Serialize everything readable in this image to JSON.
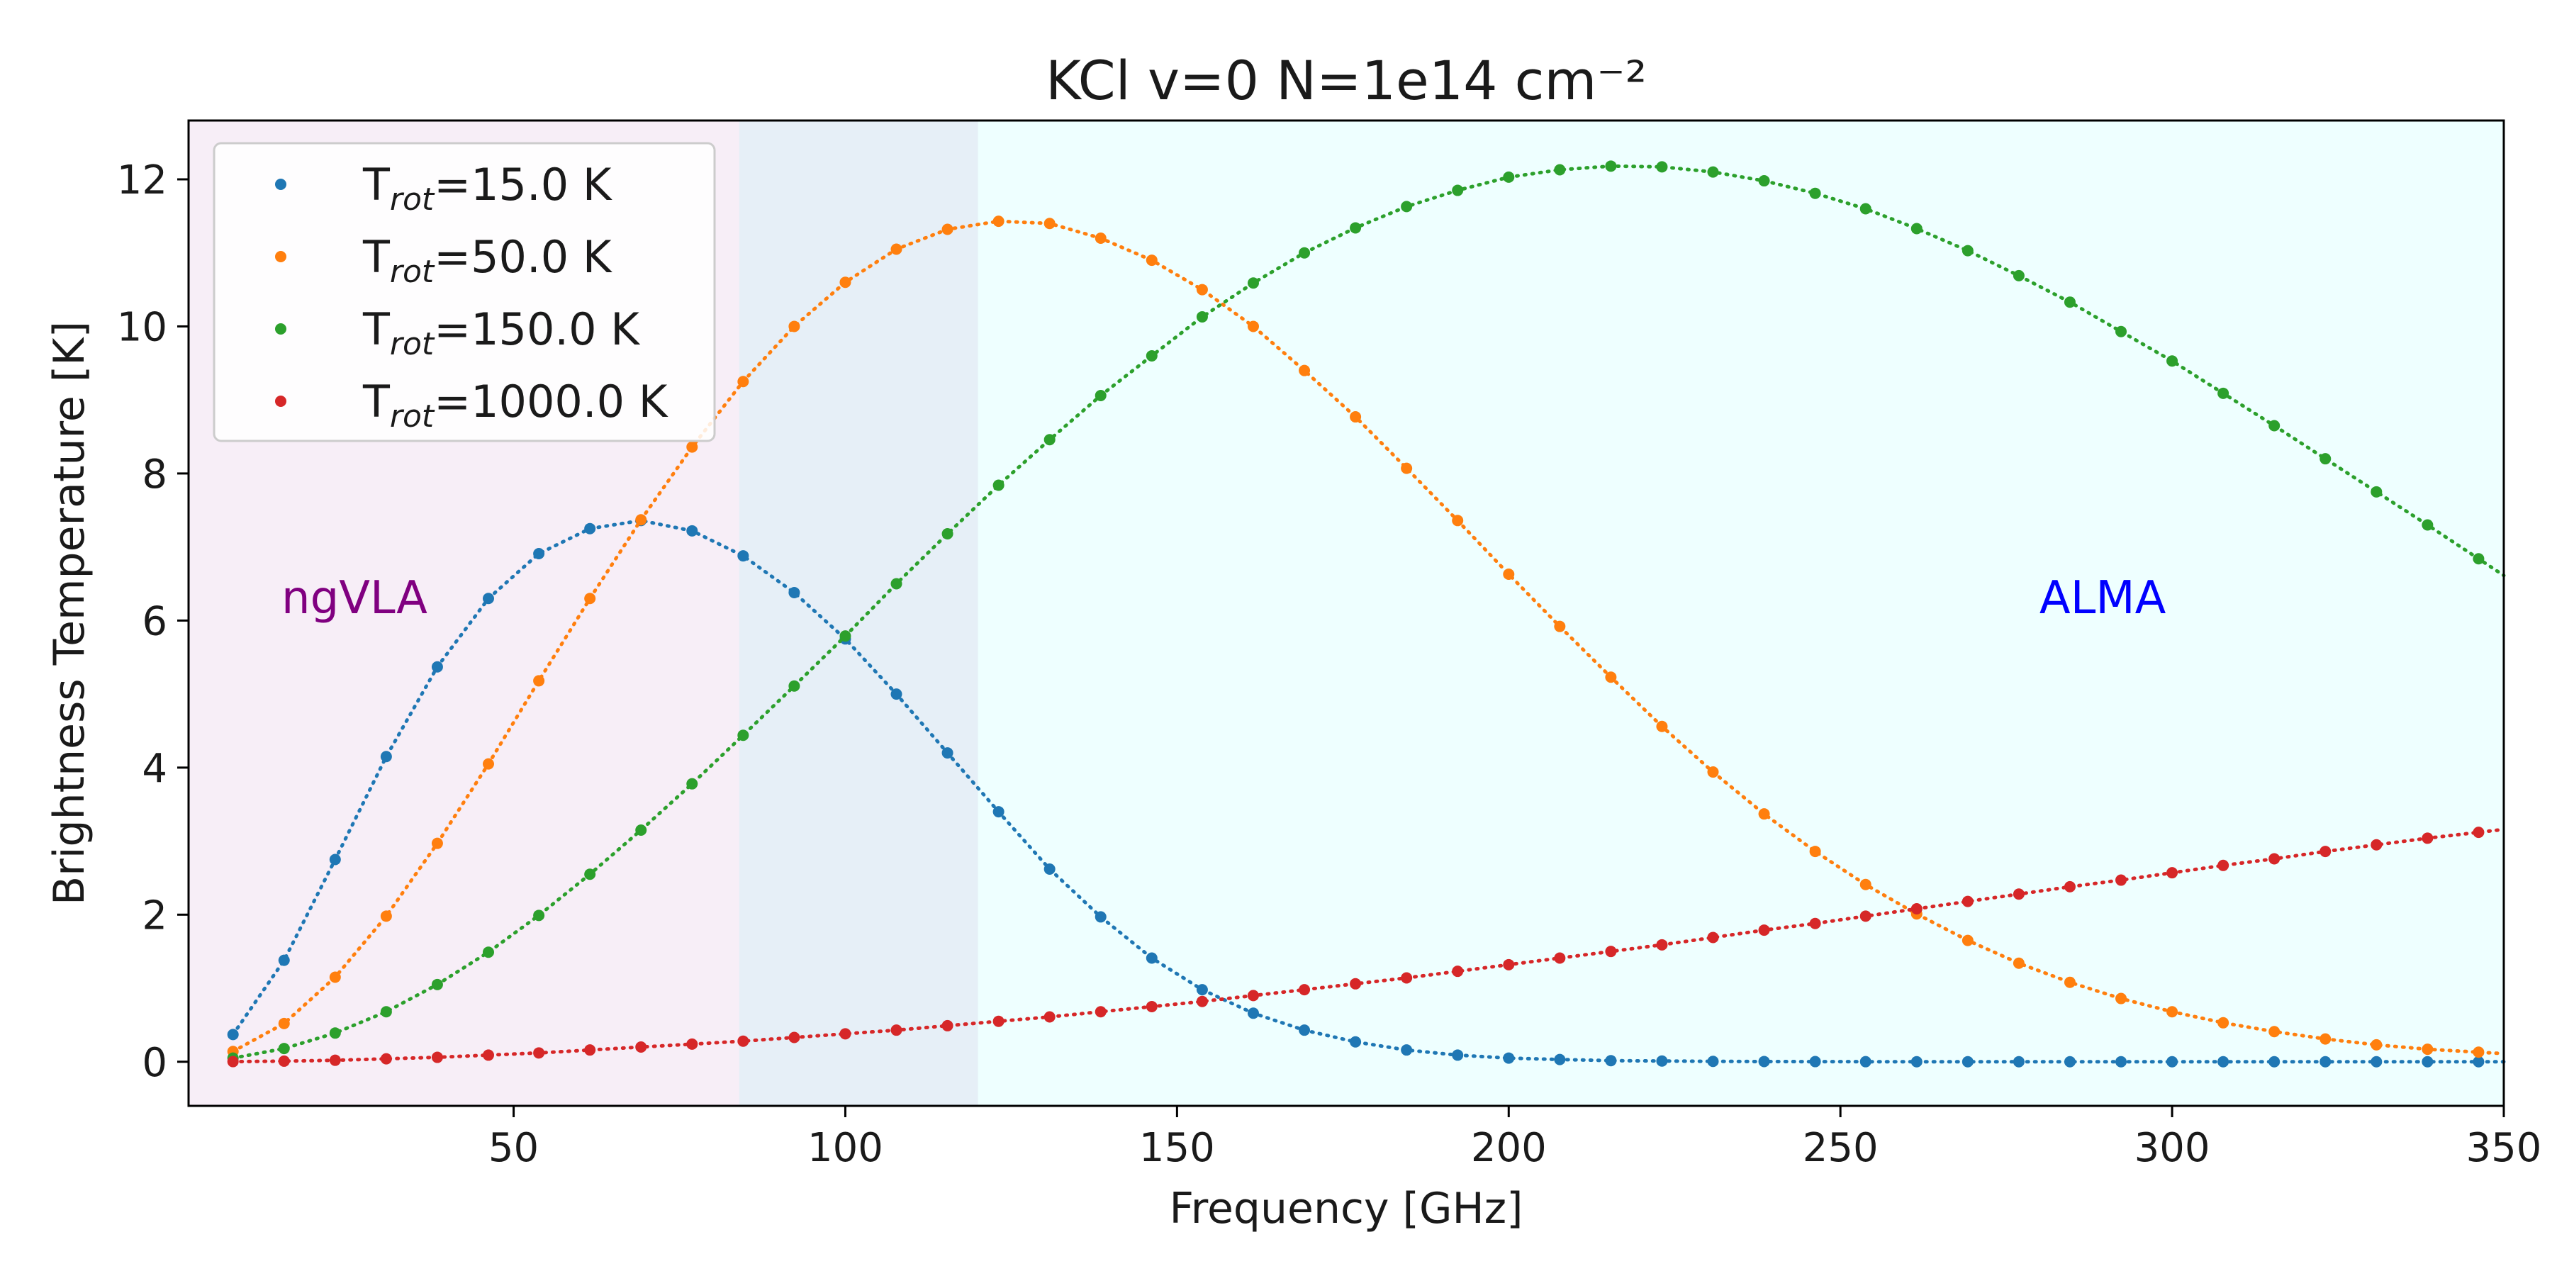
{
  "chart_data": {
    "type": "line",
    "title": "KCl v=0    N=1e14 cm⁻²",
    "xlabel": "Frequency [GHz]",
    "ylabel": "Brightness Temperature [K]",
    "xlim": [
      1,
      350
    ],
    "ylim": [
      -0.6,
      12.8
    ],
    "x_ticks": [
      50,
      100,
      150,
      200,
      250,
      300,
      350
    ],
    "y_ticks": [
      0,
      2,
      4,
      6,
      8,
      10,
      12
    ],
    "grid": false,
    "legend_position": "upper-left",
    "line_style": "dotted with point markers",
    "x": [
      7.7,
      15.4,
      23.1,
      30.8,
      38.5,
      46.2,
      53.8,
      61.5,
      69.2,
      76.9,
      84.6,
      92.3,
      100.0,
      107.7,
      115.4,
      123.1,
      130.8,
      138.5,
      146.2,
      153.8,
      161.5,
      169.2,
      176.9,
      184.6,
      192.3,
      200.0,
      207.7,
      215.4,
      223.1,
      230.8,
      238.5,
      246.2,
      253.8,
      261.5,
      269.2,
      276.9,
      284.6,
      292.3,
      300.0,
      307.7,
      315.4,
      323.1,
      330.8,
      338.5,
      346.2
    ],
    "series": [
      {
        "name": "T_rot=15.0 K",
        "name_main": "T",
        "name_sub": "rot",
        "name_rest": "=15.0 K",
        "color": "#1f77b4",
        "values": [
          0.37,
          1.38,
          2.75,
          4.15,
          5.37,
          6.3,
          6.91,
          7.25,
          7.36,
          7.22,
          6.88,
          6.38,
          5.75,
          5.0,
          4.2,
          3.4,
          2.62,
          1.97,
          1.41,
          0.98,
          0.66,
          0.43,
          0.27,
          0.16,
          0.09,
          0.05,
          0.03,
          0.015,
          0.01,
          0.005,
          0.003,
          0.002,
          0.001,
          0.0,
          0.0,
          0.0,
          0.0,
          0.0,
          0.0,
          0.0,
          0.0,
          0.0,
          0.0,
          0.0,
          0.0
        ]
      },
      {
        "name": "T_rot=50.0 K",
        "name_main": "T",
        "name_sub": "rot",
        "name_rest": "=50.0 K",
        "color": "#ff7f0e",
        "values": [
          0.14,
          0.52,
          1.15,
          1.98,
          2.97,
          4.05,
          5.18,
          6.3,
          7.37,
          8.36,
          9.25,
          10.0,
          10.6,
          11.05,
          11.32,
          11.43,
          11.4,
          11.2,
          10.9,
          10.5,
          10.0,
          9.4,
          8.77,
          8.07,
          7.36,
          6.63,
          5.92,
          5.23,
          4.56,
          3.94,
          3.37,
          2.86,
          2.41,
          2.01,
          1.65,
          1.34,
          1.08,
          0.86,
          0.68,
          0.53,
          0.41,
          0.31,
          0.23,
          0.17,
          0.13
        ]
      },
      {
        "name": "T_rot=150.0 K",
        "name_main": "T",
        "name_sub": "rot",
        "name_rest": "=150.0 K",
        "color": "#2ca02c",
        "values": [
          0.05,
          0.18,
          0.39,
          0.68,
          1.05,
          1.49,
          1.99,
          2.55,
          3.15,
          3.78,
          4.44,
          5.11,
          5.79,
          6.5,
          7.18,
          7.84,
          8.46,
          9.06,
          9.6,
          10.13,
          10.59,
          11.0,
          11.34,
          11.63,
          11.85,
          12.03,
          12.13,
          12.18,
          12.17,
          12.1,
          11.98,
          11.81,
          11.6,
          11.33,
          11.03,
          10.69,
          10.33,
          9.93,
          9.53,
          9.09,
          8.65,
          8.2,
          7.75,
          7.3,
          6.84
        ]
      },
      {
        "name": "T_rot=1000.0 K",
        "name_main": "T",
        "name_sub": "rot",
        "name_rest": "=1000.0 K",
        "color": "#d62728",
        "values": [
          0.002,
          0.008,
          0.02,
          0.04,
          0.06,
          0.09,
          0.12,
          0.16,
          0.2,
          0.24,
          0.28,
          0.33,
          0.38,
          0.43,
          0.49,
          0.55,
          0.61,
          0.68,
          0.75,
          0.82,
          0.9,
          0.98,
          1.06,
          1.14,
          1.23,
          1.32,
          1.41,
          1.5,
          1.59,
          1.69,
          1.79,
          1.88,
          1.98,
          2.08,
          2.18,
          2.28,
          2.38,
          2.47,
          2.57,
          2.67,
          2.76,
          2.86,
          2.95,
          3.04,
          3.12
        ]
      }
    ],
    "regions": [
      {
        "label": "ngVLA",
        "x_range": [
          1,
          120
        ],
        "color": "#800080",
        "label_color": "#800080",
        "label_position": [
          15,
          6.1
        ]
      },
      {
        "label": "ALMA",
        "x_range": [
          84,
          350
        ],
        "color": "#00ffff",
        "label_color": "#0000ff",
        "label_position": [
          280,
          6.1
        ]
      }
    ]
  }
}
